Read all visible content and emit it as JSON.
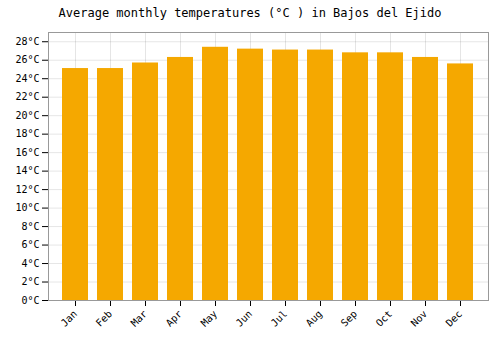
{
  "chart_data": {
    "type": "bar",
    "title": "Average monthly temperatures (°C ) in Bajos del Ejido",
    "categories": [
      "Jan",
      "Feb",
      "Mar",
      "Apr",
      "May",
      "Jun",
      "Jul",
      "Aug",
      "Sep",
      "Oct",
      "Nov",
      "Dec"
    ],
    "values": [
      25.1,
      25.1,
      25.7,
      26.3,
      27.4,
      27.2,
      27.1,
      27.1,
      26.8,
      26.8,
      26.3,
      25.6
    ],
    "color": "#F5A800",
    "ylim": [
      0,
      29
    ],
    "yticks": [
      {
        "value": 0,
        "label": "0°C"
      },
      {
        "value": 2,
        "label": "2°C"
      },
      {
        "value": 4,
        "label": "4°C"
      },
      {
        "value": 6,
        "label": "6°C"
      },
      {
        "value": 8,
        "label": "8°C"
      },
      {
        "value": 10,
        "label": "10°C"
      },
      {
        "value": 12,
        "label": "12°C"
      },
      {
        "value": 14,
        "label": "14°C"
      },
      {
        "value": 16,
        "label": "16°C"
      },
      {
        "value": 18,
        "label": "18°C"
      },
      {
        "value": 20,
        "label": "20°C"
      },
      {
        "value": 22,
        "label": "22°C"
      },
      {
        "value": 24,
        "label": "24°C"
      },
      {
        "value": 26,
        "label": "26°C"
      },
      {
        "value": 28,
        "label": "28°C"
      }
    ],
    "grid": true
  }
}
